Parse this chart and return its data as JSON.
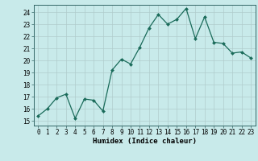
{
  "x": [
    0,
    1,
    2,
    3,
    4,
    5,
    6,
    7,
    8,
    9,
    10,
    11,
    12,
    13,
    14,
    15,
    16,
    17,
    18,
    19,
    20,
    21,
    22,
    23
  ],
  "y": [
    15.4,
    16.0,
    16.9,
    17.2,
    15.2,
    16.8,
    16.7,
    15.8,
    19.2,
    20.1,
    19.7,
    21.1,
    22.7,
    23.8,
    23.0,
    23.4,
    24.3,
    21.8,
    23.6,
    21.5,
    21.4,
    20.6,
    20.7,
    20.2
  ],
  "line_color": "#1a6b5a",
  "marker": "D",
  "marker_size": 2.0,
  "background_color": "#c8eaea",
  "grid_color": "#b0cccc",
  "ylabel_ticks": [
    15,
    16,
    17,
    18,
    19,
    20,
    21,
    22,
    23,
    24
  ],
  "xlabel": "Humidex (Indice chaleur)",
  "xlim": [
    -0.5,
    23.5
  ],
  "ylim": [
    14.6,
    24.6
  ],
  "tick_fontsize": 5.5,
  "xlabel_fontsize": 6.5
}
